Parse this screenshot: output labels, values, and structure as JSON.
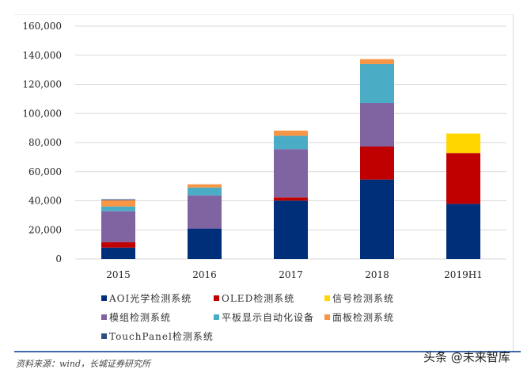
{
  "chart_data": {
    "type": "bar",
    "stacked": true,
    "categories": [
      "2015",
      "2016",
      "2017",
      "2018",
      "2019H1"
    ],
    "ylim": [
      0,
      160000
    ],
    "yticks": [
      "0",
      "20,000",
      "40,000",
      "60,000",
      "80,000",
      "100,000",
      "120,000",
      "140,000",
      "160,000"
    ],
    "grid": true,
    "legend_placement": "bottom",
    "series": [
      {
        "name": "AOI光学检测系统",
        "color": "#002f7a",
        "values": [
          7800,
          20900,
          40100,
          54600,
          37900
        ]
      },
      {
        "name": "OLED检测系统",
        "color": "#c00000",
        "values": [
          3800,
          0,
          2200,
          22700,
          34900
        ]
      },
      {
        "name": "信号检测系统",
        "color": "#ffd700",
        "values": [
          0,
          0,
          0,
          0,
          13400
        ]
      },
      {
        "name": "模组检测系统",
        "color": "#8064a2",
        "values": [
          21200,
          22800,
          33200,
          29900,
          0
        ]
      },
      {
        "name": "平板显示自动化设备",
        "color": "#4bacc6",
        "values": [
          3300,
          5400,
          9100,
          26700,
          0
        ]
      },
      {
        "name": "面板检测系统",
        "color": "#f79646",
        "values": [
          4300,
          2200,
          3600,
          3400,
          0
        ]
      },
      {
        "name": "TouchPanel检测系统",
        "color": "#2f4f7f",
        "values": [
          600,
          0,
          0,
          0,
          0
        ]
      }
    ]
  },
  "source": "资料来源：wind，长城证券研究所",
  "watermark": "头条 @未来智库"
}
